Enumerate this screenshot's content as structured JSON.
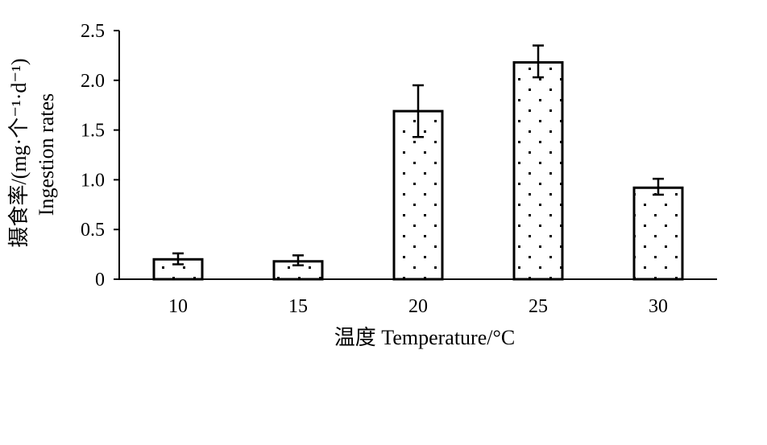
{
  "chart_data": {
    "type": "bar",
    "categories": [
      "10",
      "15",
      "20",
      "25",
      "30"
    ],
    "values": [
      0.2,
      0.18,
      1.69,
      2.18,
      0.92
    ],
    "error_bars": [
      {
        "low": 0.15,
        "high": 0.26
      },
      {
        "low": 0.14,
        "high": 0.24
      },
      {
        "low": 1.43,
        "high": 1.95
      },
      {
        "low": 2.03,
        "high": 2.35
      },
      {
        "low": 0.85,
        "high": 1.01
      }
    ],
    "ylim": [
      0,
      2.5
    ],
    "yticks": [
      "0",
      "0.5",
      "1.0",
      "1.5",
      "2.0",
      "2.5"
    ],
    "xlabel": "温度 Temperature/°C",
    "ylabel_line1": "摄食率/(mg·个⁻¹·d⁻¹)",
    "ylabel_line2": "Ingestion rates",
    "grid": false,
    "legend": "none",
    "colors": {
      "bar_fill_pattern": "dotted",
      "bar_stroke": "#000000",
      "axis": "#000000"
    }
  }
}
